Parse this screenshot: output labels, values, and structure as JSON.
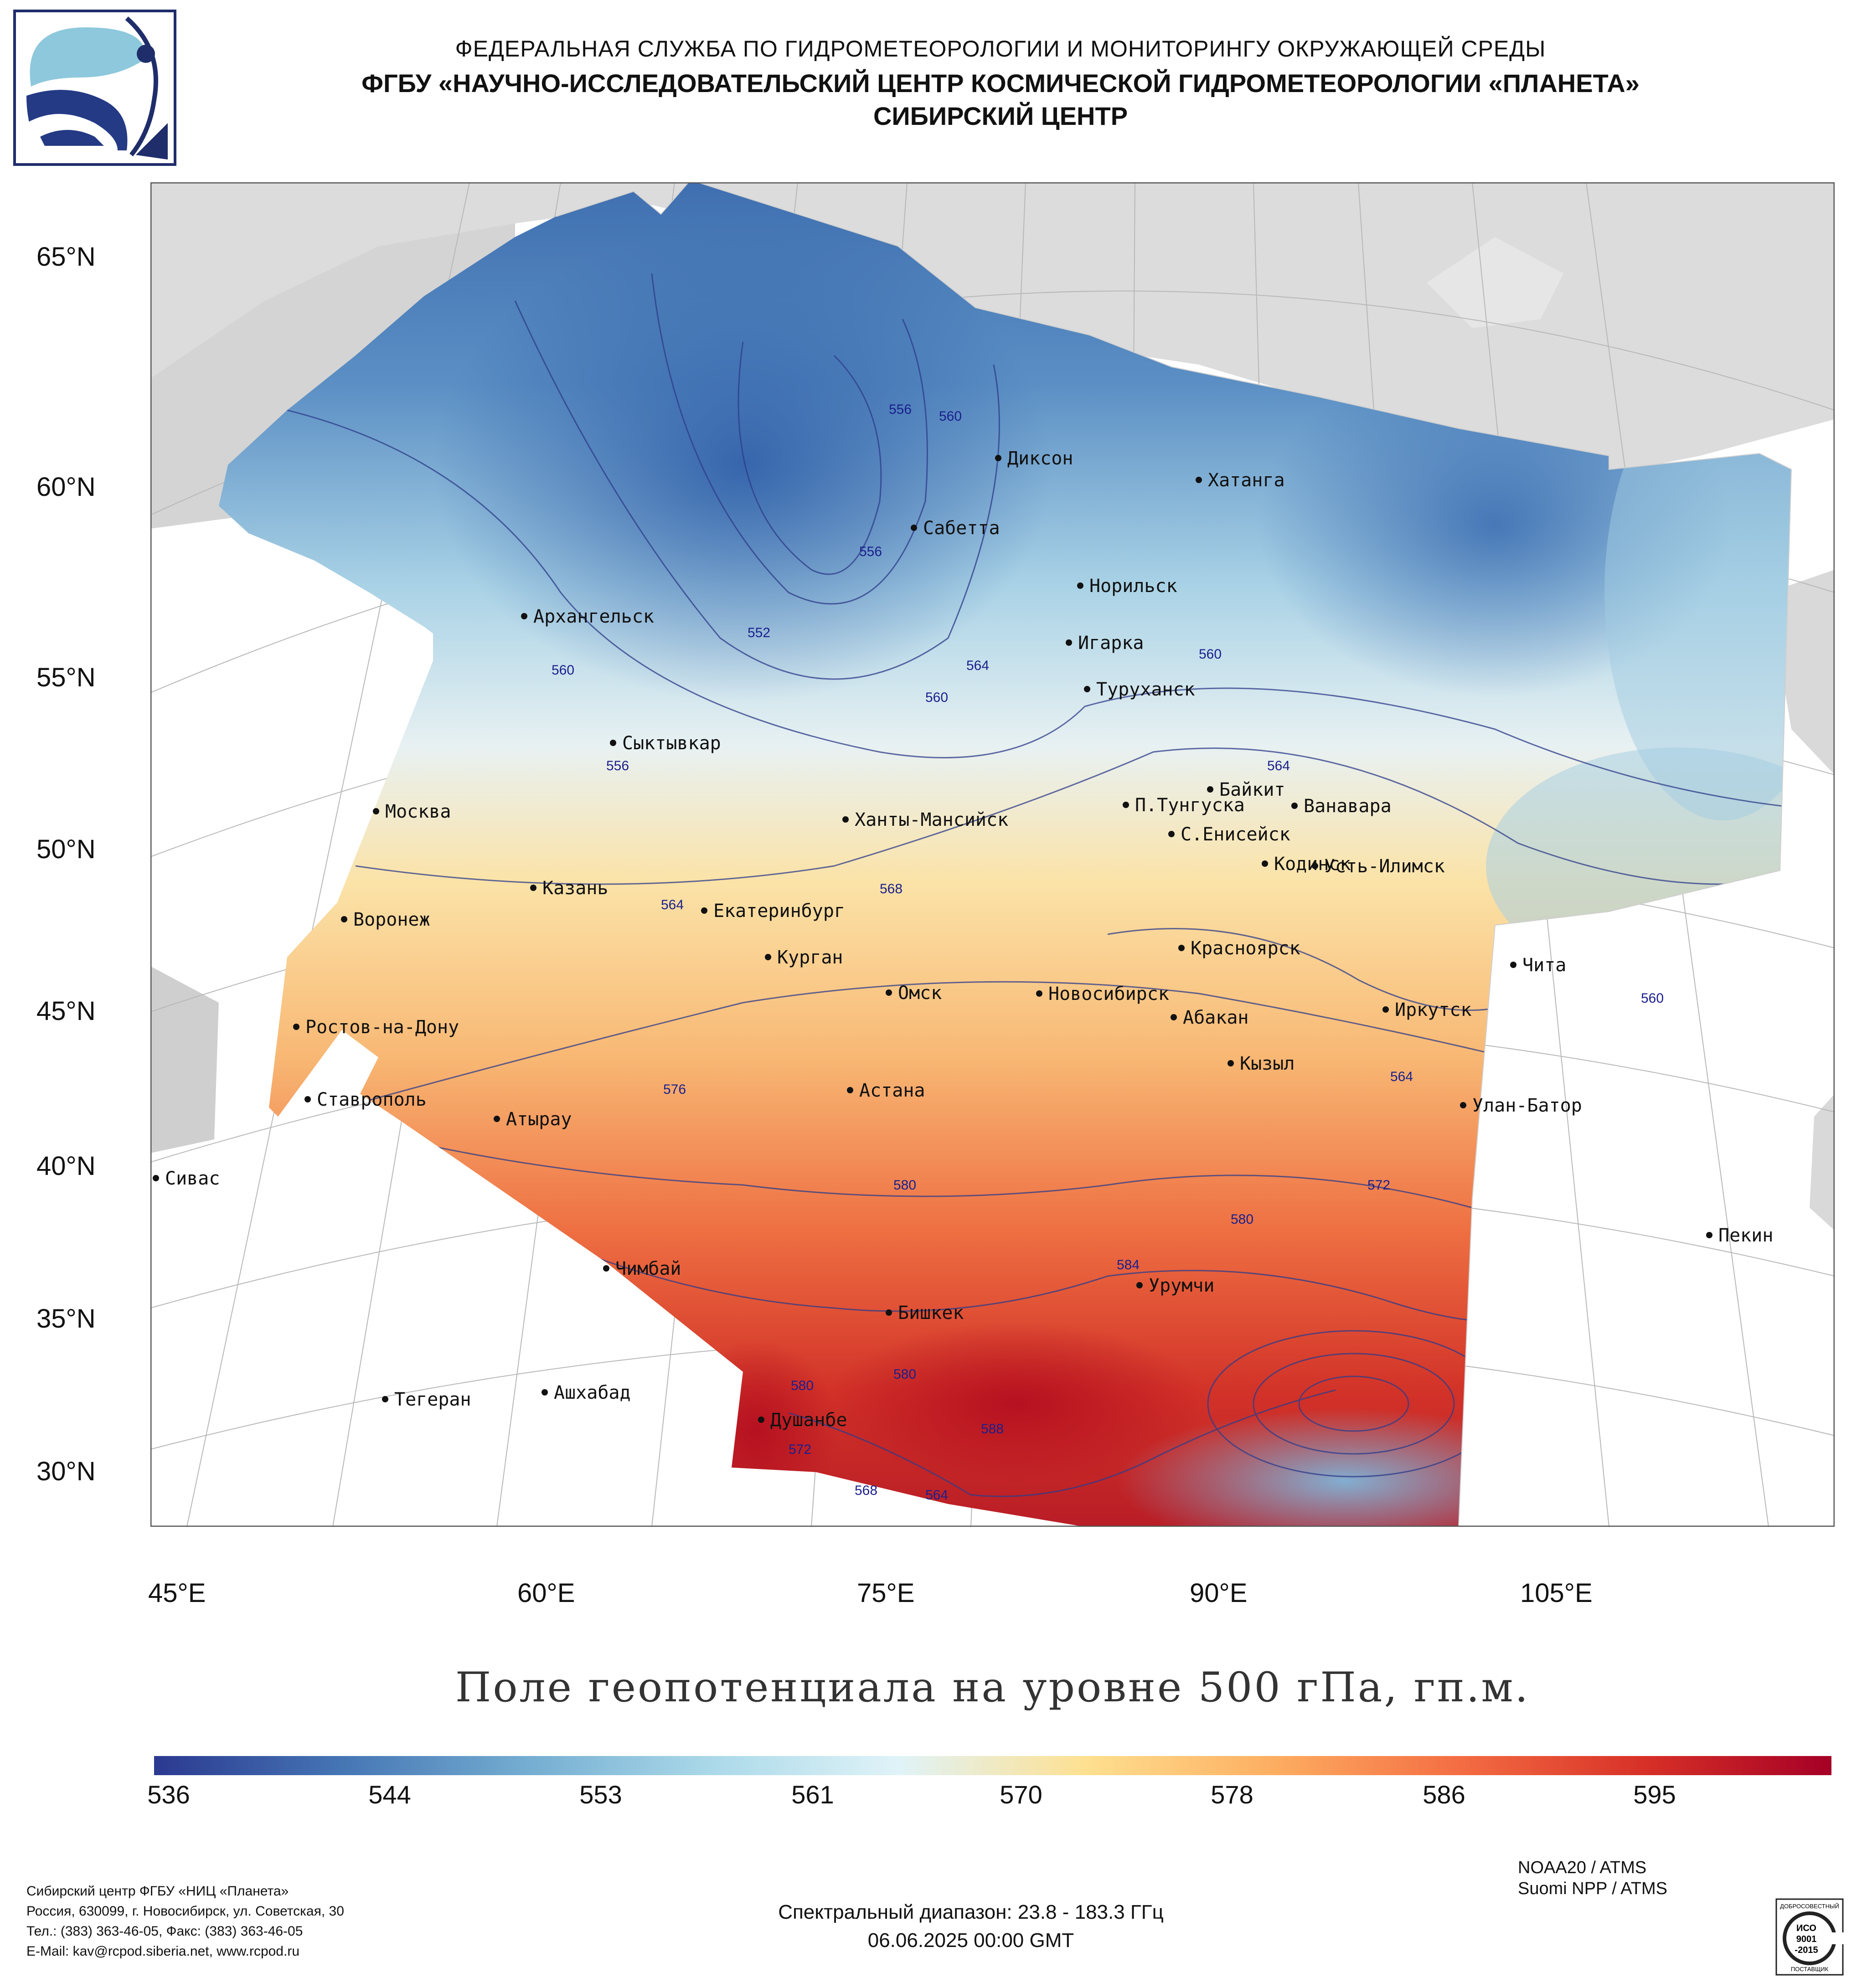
{
  "header": {
    "line1": "ФЕДЕРАЛЬНАЯ СЛУЖБА ПО ГИДРОМЕТЕОРОЛОГИИ И МОНИТОРИНГУ ОКРУЖАЮЩЕЙ СРЕДЫ",
    "line2": "ФГБУ «НАУЧНО-ИССЛЕДОВАТЕЛЬСКИЙ ЦЕНТР КОСМИЧЕСКОЙ ГИДРОМЕТЕОРОЛОГИИ «ПЛАНЕТА»",
    "line3": "СИБИРСКИЙ ЦЕНТР"
  },
  "map": {
    "lat_labels": [
      "65°N",
      "60°N",
      "55°N",
      "50°N",
      "45°N",
      "40°N",
      "35°N",
      "30°N"
    ],
    "lon_labels": [
      "45°E",
      "60°E",
      "75°E",
      "90°E",
      "105°E"
    ],
    "cities": [
      "Диксон",
      "Хатанга",
      "Сабетта",
      "Норильск",
      "Архангельск",
      "Игарка",
      "Туруханск",
      "Сыктывкар",
      "Байкит",
      "Ванавара",
      "П.Тунгуска",
      "Москва",
      "Ханты-Мансийск",
      "С.Енисейск",
      "Кодинск",
      "Усть-Илимск",
      "Казань",
      "Екатеринбург",
      "Воронеж",
      "Красноярск",
      "Курган",
      "Чита",
      "Омск",
      "Новосибирск",
      "Иркутск",
      "Ростов-на-Дону",
      "Абакан",
      "Кызыл",
      "Астана",
      "Ставрополь",
      "Улан-Батор",
      "Атырау",
      "Сивас",
      "Пекин",
      "Чимбай",
      "Урумчи",
      "Бишкек",
      "Ашхабад",
      "Тегеран",
      "Душанбе"
    ],
    "contour_labels": [
      "556",
      "560",
      "556",
      "552",
      "560",
      "564",
      "560",
      "556",
      "560",
      "564",
      "564",
      "568",
      "576",
      "580",
      "572",
      "580",
      "584",
      "580",
      "580",
      "588",
      "572",
      "568",
      "564",
      "564",
      "560"
    ]
  },
  "title": "Поле геопотенциала на уровне 500 гПа, гп.м.",
  "colorbar": {
    "ticks": [
      "536",
      "544",
      "553",
      "561",
      "570",
      "578",
      "586",
      "595"
    ],
    "colors": [
      "#2b3990",
      "#4575b4",
      "#74add1",
      "#abd9e9",
      "#e0f3f8",
      "#fee090",
      "#fdae61",
      "#f46d43",
      "#d73027",
      "#a50026"
    ]
  },
  "footer": {
    "org_lines": [
      "Сибирский центр ФГБУ «НИЦ «Планета»",
      "Россия, 630099, г. Новосибирск, ул. Советская, 30",
      "Тел.: (383) 363-46-05, Факс: (383) 363-46-05",
      "E-Mail: kav@rcpod.siberia.net, www.rcpod.ru"
    ],
    "spectral": "Спектральный диапазон: 23.8 - 183.3 ГГц",
    "datetime": "06.06.2025 00:00 GMT",
    "sat1": "NOAA20 / ATMS",
    "sat2": "Suomi NPP / ATMS",
    "iso_top": "ДОБРОСОВЕСТНЫЙ",
    "iso_mid1": "ИСО",
    "iso_mid2": "9001",
    "iso_mid3": "-2015",
    "iso_bot": "ПОСТАВЩИК"
  }
}
